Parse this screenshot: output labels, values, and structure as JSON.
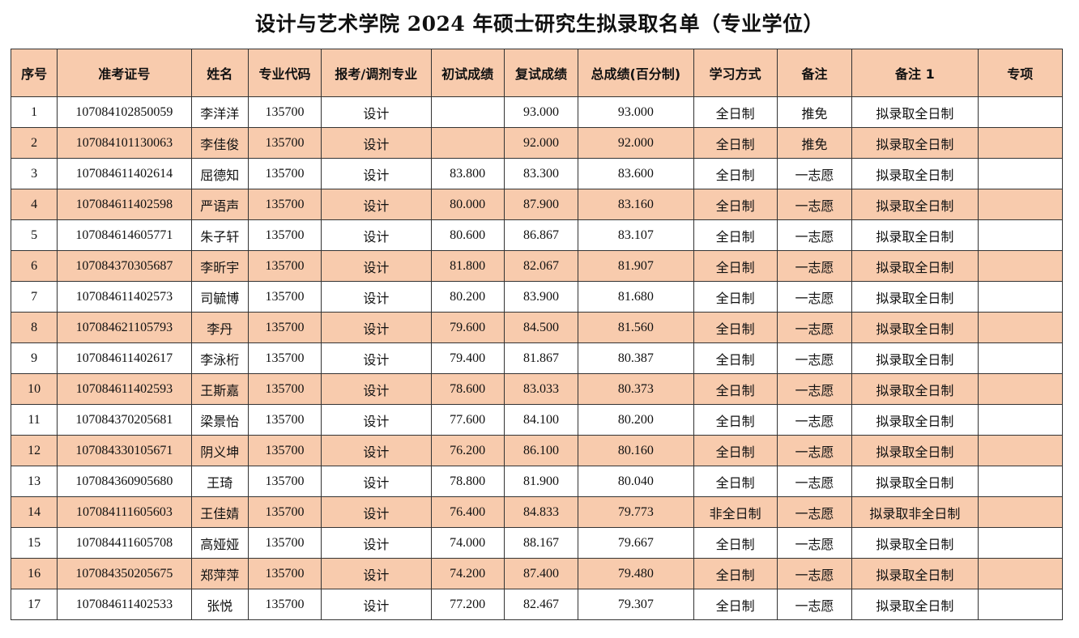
{
  "title": "设计与艺术学院 2024 年硕士研究生拟录取名单（专业学位）",
  "colors": {
    "header_fill": "#f8cbad",
    "alt_row_fill": "#f8cbad",
    "border": "#333333"
  },
  "columns": [
    "序号",
    "准考证号",
    "姓名",
    "专业代码",
    "报考/调剂专业",
    "初试成绩",
    "复试成绩",
    "总成绩(百分制)",
    "学习方式",
    "备注",
    "备注 1",
    "专项"
  ],
  "rows": [
    [
      "1",
      "107084102850059",
      "李洋洋",
      "135700",
      "设计",
      "",
      "93.000",
      "93.000",
      "全日制",
      "推免",
      "拟录取全日制",
      ""
    ],
    [
      "2",
      "107084101130063",
      "李佳俊",
      "135700",
      "设计",
      "",
      "92.000",
      "92.000",
      "全日制",
      "推免",
      "拟录取全日制",
      ""
    ],
    [
      "3",
      "107084611402614",
      "屈德知",
      "135700",
      "设计",
      "83.800",
      "83.300",
      "83.600",
      "全日制",
      "一志愿",
      "拟录取全日制",
      ""
    ],
    [
      "4",
      "107084611402598",
      "严语声",
      "135700",
      "设计",
      "80.000",
      "87.900",
      "83.160",
      "全日制",
      "一志愿",
      "拟录取全日制",
      ""
    ],
    [
      "5",
      "107084614605771",
      "朱子轩",
      "135700",
      "设计",
      "80.600",
      "86.867",
      "83.107",
      "全日制",
      "一志愿",
      "拟录取全日制",
      ""
    ],
    [
      "6",
      "107084370305687",
      "李昕宇",
      "135700",
      "设计",
      "81.800",
      "82.067",
      "81.907",
      "全日制",
      "一志愿",
      "拟录取全日制",
      ""
    ],
    [
      "7",
      "107084611402573",
      "司毓博",
      "135700",
      "设计",
      "80.200",
      "83.900",
      "81.680",
      "全日制",
      "一志愿",
      "拟录取全日制",
      ""
    ],
    [
      "8",
      "107084621105793",
      "李丹",
      "135700",
      "设计",
      "79.600",
      "84.500",
      "81.560",
      "全日制",
      "一志愿",
      "拟录取全日制",
      ""
    ],
    [
      "9",
      "107084611402617",
      "李泳桁",
      "135700",
      "设计",
      "79.400",
      "81.867",
      "80.387",
      "全日制",
      "一志愿",
      "拟录取全日制",
      ""
    ],
    [
      "10",
      "107084611402593",
      "王斯嘉",
      "135700",
      "设计",
      "78.600",
      "83.033",
      "80.373",
      "全日制",
      "一志愿",
      "拟录取全日制",
      ""
    ],
    [
      "11",
      "107084370205681",
      "梁景怡",
      "135700",
      "设计",
      "77.600",
      "84.100",
      "80.200",
      "全日制",
      "一志愿",
      "拟录取全日制",
      ""
    ],
    [
      "12",
      "107084330105671",
      "阴义坤",
      "135700",
      "设计",
      "76.200",
      "86.100",
      "80.160",
      "全日制",
      "一志愿",
      "拟录取全日制",
      ""
    ],
    [
      "13",
      "107084360905680",
      "王琦",
      "135700",
      "设计",
      "78.800",
      "81.900",
      "80.040",
      "全日制",
      "一志愿",
      "拟录取全日制",
      ""
    ],
    [
      "14",
      "107084111605603",
      "王佳婧",
      "135700",
      "设计",
      "76.400",
      "84.833",
      "79.773",
      "非全日制",
      "一志愿",
      "拟录取非全日制",
      ""
    ],
    [
      "15",
      "107084411605708",
      "高娅娅",
      "135700",
      "设计",
      "74.000",
      "88.167",
      "79.667",
      "全日制",
      "一志愿",
      "拟录取全日制",
      ""
    ],
    [
      "16",
      "107084350205675",
      "郑萍萍",
      "135700",
      "设计",
      "74.200",
      "87.400",
      "79.480",
      "全日制",
      "一志愿",
      "拟录取全日制",
      ""
    ],
    [
      "17",
      "107084611402533",
      "张悦",
      "135700",
      "设计",
      "77.200",
      "82.467",
      "79.307",
      "全日制",
      "一志愿",
      "拟录取全日制",
      ""
    ]
  ]
}
